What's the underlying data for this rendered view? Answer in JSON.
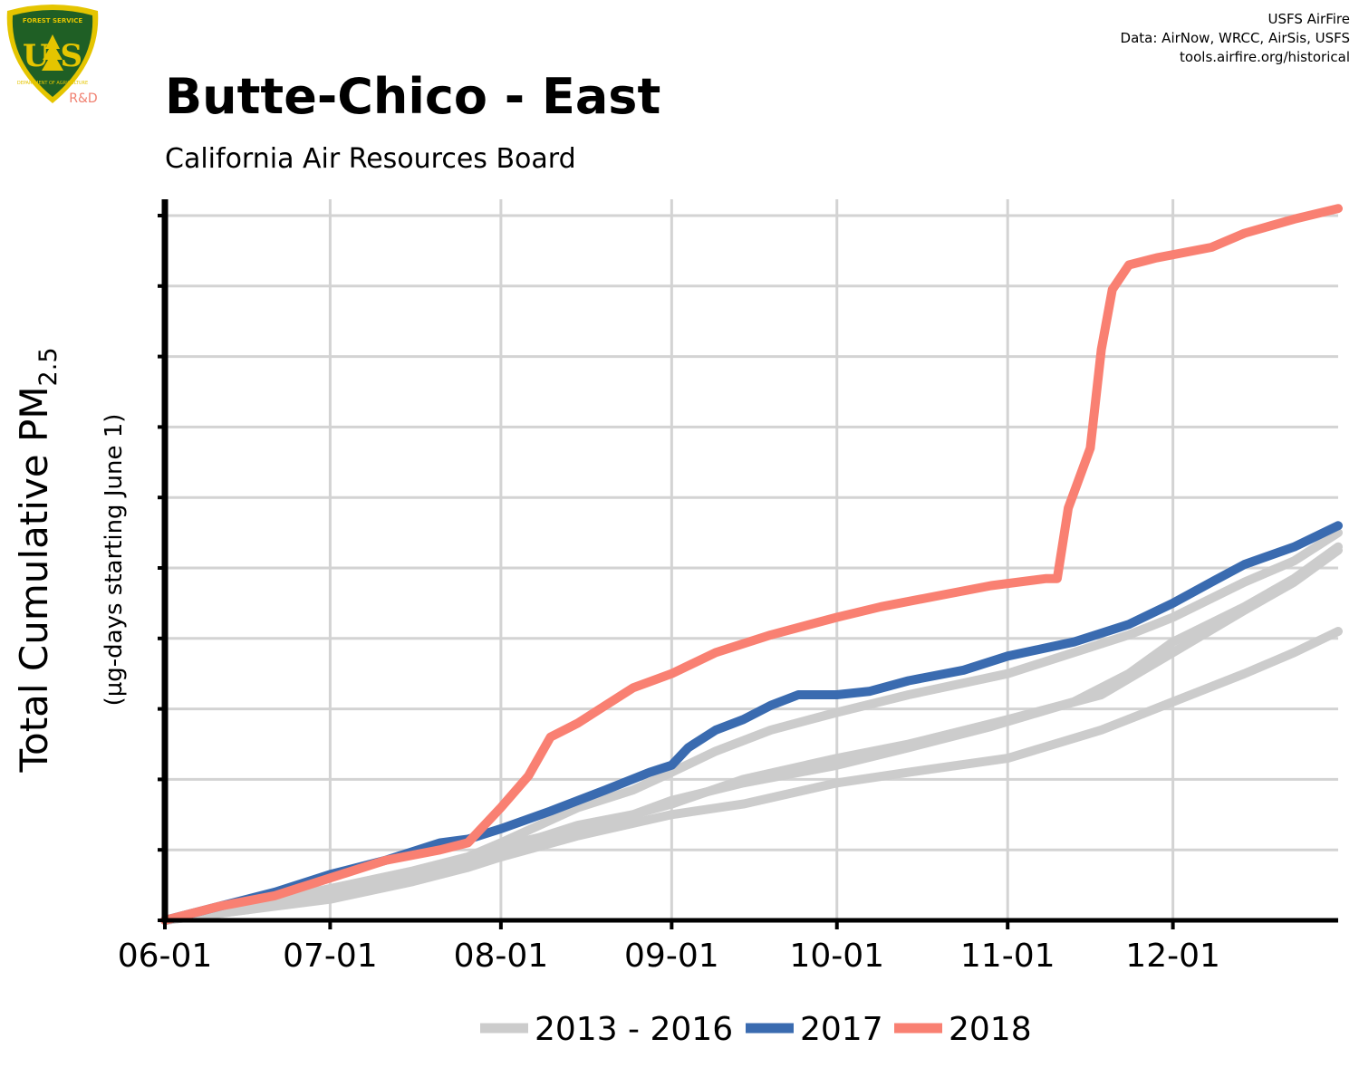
{
  "header": {
    "title": "Butte-Chico -  East",
    "subtitle": "California Air Resources Board",
    "credits": [
      "USFS AirFire",
      "Data: AirNow, WRCC, AirSis, USFS",
      "tools.airfire.org/historical"
    ]
  },
  "logo": {
    "top_text": "FOREST SERVICE",
    "letters": "U S",
    "bottom_text": "DEPARTMENT OF AGRICULTURE",
    "badge": "R&D",
    "colors": {
      "shield": "#1f5f25",
      "rim": "#e5c500",
      "badge": "#f08070"
    }
  },
  "chart_data": {
    "type": "line",
    "title": "Butte-Chico -  East",
    "subtitle": "California Air Resources Board",
    "ylabel": "Total Cumulative PM",
    "ylabel_subscript": "2.5",
    "ylabel_units": "(µg-days starting June 1)",
    "x_ticks": [
      "06-01",
      "07-01",
      "08-01",
      "09-01",
      "10-01",
      "11-01",
      "12-01"
    ],
    "x_tick_days": [
      0,
      30,
      61,
      92,
      122,
      153,
      183
    ],
    "xlim": [
      0,
      213
    ],
    "ylim": [
      0,
      10.2
    ],
    "y_ticks": [
      0,
      1,
      2,
      3,
      4,
      5,
      6,
      7,
      8,
      9,
      10
    ],
    "y_tick_labels": "none",
    "grid": true,
    "legend_position": "bottom",
    "series": [
      {
        "name": "2013 - 2016",
        "color": "#cccccc",
        "group": "background",
        "points": [
          [
            0,
            0
          ],
          [
            15,
            0.15
          ],
          [
            30,
            0.3
          ],
          [
            45,
            0.55
          ],
          [
            55,
            0.75
          ],
          [
            61,
            0.9
          ],
          [
            75,
            1.2
          ],
          [
            92,
            1.5
          ],
          [
            105,
            1.65
          ],
          [
            122,
            1.95
          ],
          [
            135,
            2.1
          ],
          [
            153,
            2.3
          ],
          [
            170,
            2.7
          ],
          [
            183,
            3.1
          ],
          [
            196,
            3.5
          ],
          [
            205,
            3.8
          ],
          [
            213,
            4.1
          ]
        ]
      },
      {
        "name": "2013 - 2016",
        "color": "#cccccc",
        "group": "background",
        "points": [
          [
            0,
            0
          ],
          [
            15,
            0.15
          ],
          [
            30,
            0.35
          ],
          [
            45,
            0.6
          ],
          [
            55,
            0.85
          ],
          [
            61,
            1.0
          ],
          [
            75,
            1.35
          ],
          [
            85,
            1.5
          ],
          [
            92,
            1.65
          ],
          [
            105,
            2.0
          ],
          [
            122,
            2.3
          ],
          [
            135,
            2.5
          ],
          [
            153,
            2.85
          ],
          [
            170,
            3.2
          ],
          [
            183,
            3.8
          ],
          [
            196,
            4.4
          ],
          [
            205,
            4.8
          ],
          [
            213,
            5.25
          ]
        ]
      },
      {
        "name": "2013 - 2016",
        "color": "#cccccc",
        "group": "background",
        "points": [
          [
            0,
            0
          ],
          [
            15,
            0.2
          ],
          [
            30,
            0.45
          ],
          [
            45,
            0.65
          ],
          [
            55,
            0.85
          ],
          [
            61,
            1.05
          ],
          [
            75,
            1.3
          ],
          [
            85,
            1.5
          ],
          [
            92,
            1.7
          ],
          [
            105,
            1.95
          ],
          [
            122,
            2.2
          ],
          [
            135,
            2.45
          ],
          [
            150,
            2.75
          ],
          [
            165,
            3.1
          ],
          [
            175,
            3.5
          ],
          [
            183,
            3.95
          ],
          [
            196,
            4.45
          ],
          [
            205,
            4.85
          ],
          [
            213,
            5.3
          ]
        ]
      },
      {
        "name": "2013 - 2016",
        "color": "#cccccc",
        "group": "background",
        "points": [
          [
            0,
            0
          ],
          [
            15,
            0.2
          ],
          [
            30,
            0.45
          ],
          [
            45,
            0.7
          ],
          [
            55,
            0.9
          ],
          [
            61,
            1.1
          ],
          [
            75,
            1.6
          ],
          [
            85,
            1.85
          ],
          [
            92,
            2.1
          ],
          [
            100,
            2.4
          ],
          [
            110,
            2.7
          ],
          [
            122,
            2.95
          ],
          [
            135,
            3.2
          ],
          [
            153,
            3.5
          ],
          [
            165,
            3.8
          ],
          [
            175,
            4.05
          ],
          [
            183,
            4.3
          ],
          [
            196,
            4.8
          ],
          [
            205,
            5.1
          ],
          [
            213,
            5.5
          ]
        ]
      },
      {
        "name": "2017",
        "color": "#3a6bb0",
        "points": [
          [
            0,
            0
          ],
          [
            10,
            0.2
          ],
          [
            20,
            0.4
          ],
          [
            30,
            0.65
          ],
          [
            40,
            0.85
          ],
          [
            50,
            1.1
          ],
          [
            55,
            1.15
          ],
          [
            61,
            1.3
          ],
          [
            70,
            1.55
          ],
          [
            80,
            1.85
          ],
          [
            88,
            2.1
          ],
          [
            92,
            2.2
          ],
          [
            95,
            2.45
          ],
          [
            100,
            2.7
          ],
          [
            105,
            2.85
          ],
          [
            110,
            3.05
          ],
          [
            115,
            3.2
          ],
          [
            122,
            3.2
          ],
          [
            128,
            3.25
          ],
          [
            135,
            3.4
          ],
          [
            145,
            3.55
          ],
          [
            153,
            3.75
          ],
          [
            165,
            3.95
          ],
          [
            175,
            4.2
          ],
          [
            183,
            4.5
          ],
          [
            190,
            4.8
          ],
          [
            196,
            5.05
          ],
          [
            205,
            5.3
          ],
          [
            213,
            5.6
          ]
        ]
      },
      {
        "name": "2018",
        "color": "#f98072",
        "points": [
          [
            0,
            0
          ],
          [
            10,
            0.2
          ],
          [
            20,
            0.35
          ],
          [
            30,
            0.6
          ],
          [
            40,
            0.85
          ],
          [
            50,
            1.0
          ],
          [
            55,
            1.1
          ],
          [
            61,
            1.6
          ],
          [
            66,
            2.05
          ],
          [
            70,
            2.6
          ],
          [
            75,
            2.8
          ],
          [
            80,
            3.05
          ],
          [
            85,
            3.3
          ],
          [
            92,
            3.5
          ],
          [
            100,
            3.8
          ],
          [
            110,
            4.05
          ],
          [
            122,
            4.3
          ],
          [
            130,
            4.45
          ],
          [
            140,
            4.6
          ],
          [
            150,
            4.75
          ],
          [
            160,
            4.85
          ],
          [
            162,
            4.85
          ],
          [
            164,
            5.85
          ],
          [
            168,
            6.7
          ],
          [
            170,
            8.1
          ],
          [
            172,
            8.95
          ],
          [
            175,
            9.3
          ],
          [
            180,
            9.4
          ],
          [
            190,
            9.55
          ],
          [
            196,
            9.75
          ],
          [
            205,
            9.95
          ],
          [
            213,
            10.1
          ]
        ]
      }
    ],
    "legend": [
      {
        "label": "2013 - 2016",
        "color": "#cccccc"
      },
      {
        "label": "2017",
        "color": "#3a6bb0"
      },
      {
        "label": "2018",
        "color": "#f98072"
      }
    ]
  }
}
